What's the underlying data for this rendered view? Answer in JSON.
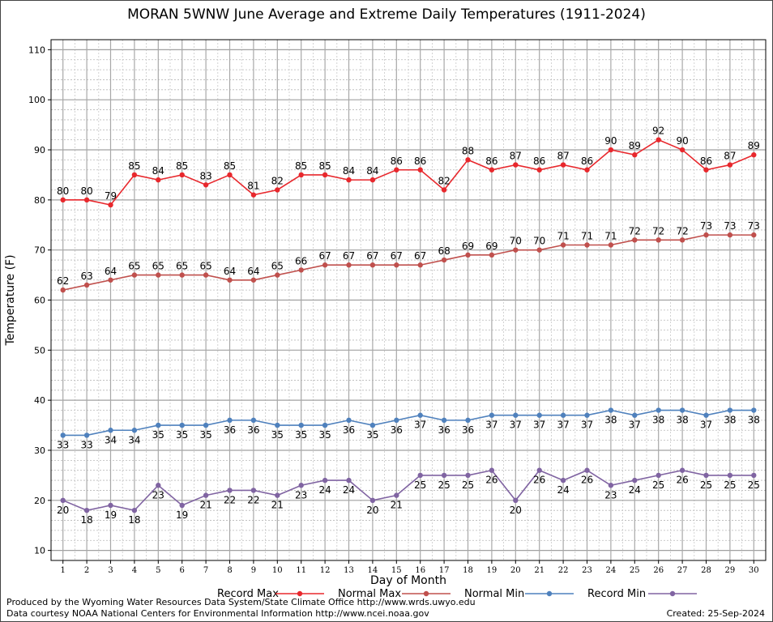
{
  "chart_data": {
    "type": "line",
    "title": "MORAN 5WNW June Average and Extreme Daily Temperatures (1911-2024)",
    "xlabel": "Day of Month",
    "ylabel": "Temperature (F)",
    "ylim": [
      8,
      112
    ],
    "yticks": [
      10,
      20,
      30,
      40,
      50,
      60,
      70,
      80,
      90,
      100,
      110
    ],
    "x": [
      1,
      2,
      3,
      4,
      5,
      6,
      7,
      8,
      9,
      10,
      11,
      12,
      13,
      14,
      15,
      16,
      17,
      18,
      19,
      20,
      21,
      22,
      23,
      24,
      25,
      26,
      27,
      28,
      29,
      30
    ],
    "grid": true,
    "legend_position": "bottom",
    "series": [
      {
        "name": "Record Max",
        "color": "#e8282d",
        "label_pos": "above",
        "values": [
          80,
          80,
          79,
          85,
          84,
          85,
          83,
          85,
          81,
          82,
          85,
          85,
          84,
          84,
          86,
          86,
          82,
          88,
          86,
          87,
          86,
          87,
          86,
          90,
          89,
          92,
          90,
          86,
          87,
          89
        ]
      },
      {
        "name": "Normal Max",
        "color": "#c0504d",
        "label_pos": "above",
        "values": [
          62,
          63,
          64,
          65,
          65,
          65,
          65,
          64,
          64,
          65,
          66,
          67,
          67,
          67,
          67,
          67,
          68,
          69,
          69,
          70,
          70,
          71,
          71,
          71,
          72,
          72,
          72,
          73,
          73,
          73
        ]
      },
      {
        "name": "Normal Min",
        "color": "#4f81bd",
        "label_pos": "below",
        "values": [
          33,
          33,
          34,
          34,
          35,
          35,
          35,
          36,
          36,
          35,
          35,
          35,
          36,
          35,
          36,
          37,
          36,
          36,
          37,
          37,
          37,
          37,
          37,
          38,
          37,
          38,
          38,
          37,
          38,
          38
        ]
      },
      {
        "name": "Record Min",
        "color": "#8064a2",
        "label_pos": "below",
        "values": [
          20,
          18,
          19,
          18,
          23,
          19,
          21,
          22,
          22,
          21,
          23,
          24,
          24,
          20,
          21,
          25,
          25,
          25,
          26,
          20,
          26,
          24,
          26,
          23,
          24,
          25,
          26,
          25,
          25,
          25
        ]
      }
    ]
  },
  "footer": {
    "produced_by": "Produced by the Wyoming Water Resources Data System/State Climate Office http://www.wrds.uwyo.edu",
    "data_courtesy": "Data courtesy NOAA National Centers for Environmental Information http://www.ncei.noaa.gov",
    "created": "Created:  25-Sep-2024"
  }
}
